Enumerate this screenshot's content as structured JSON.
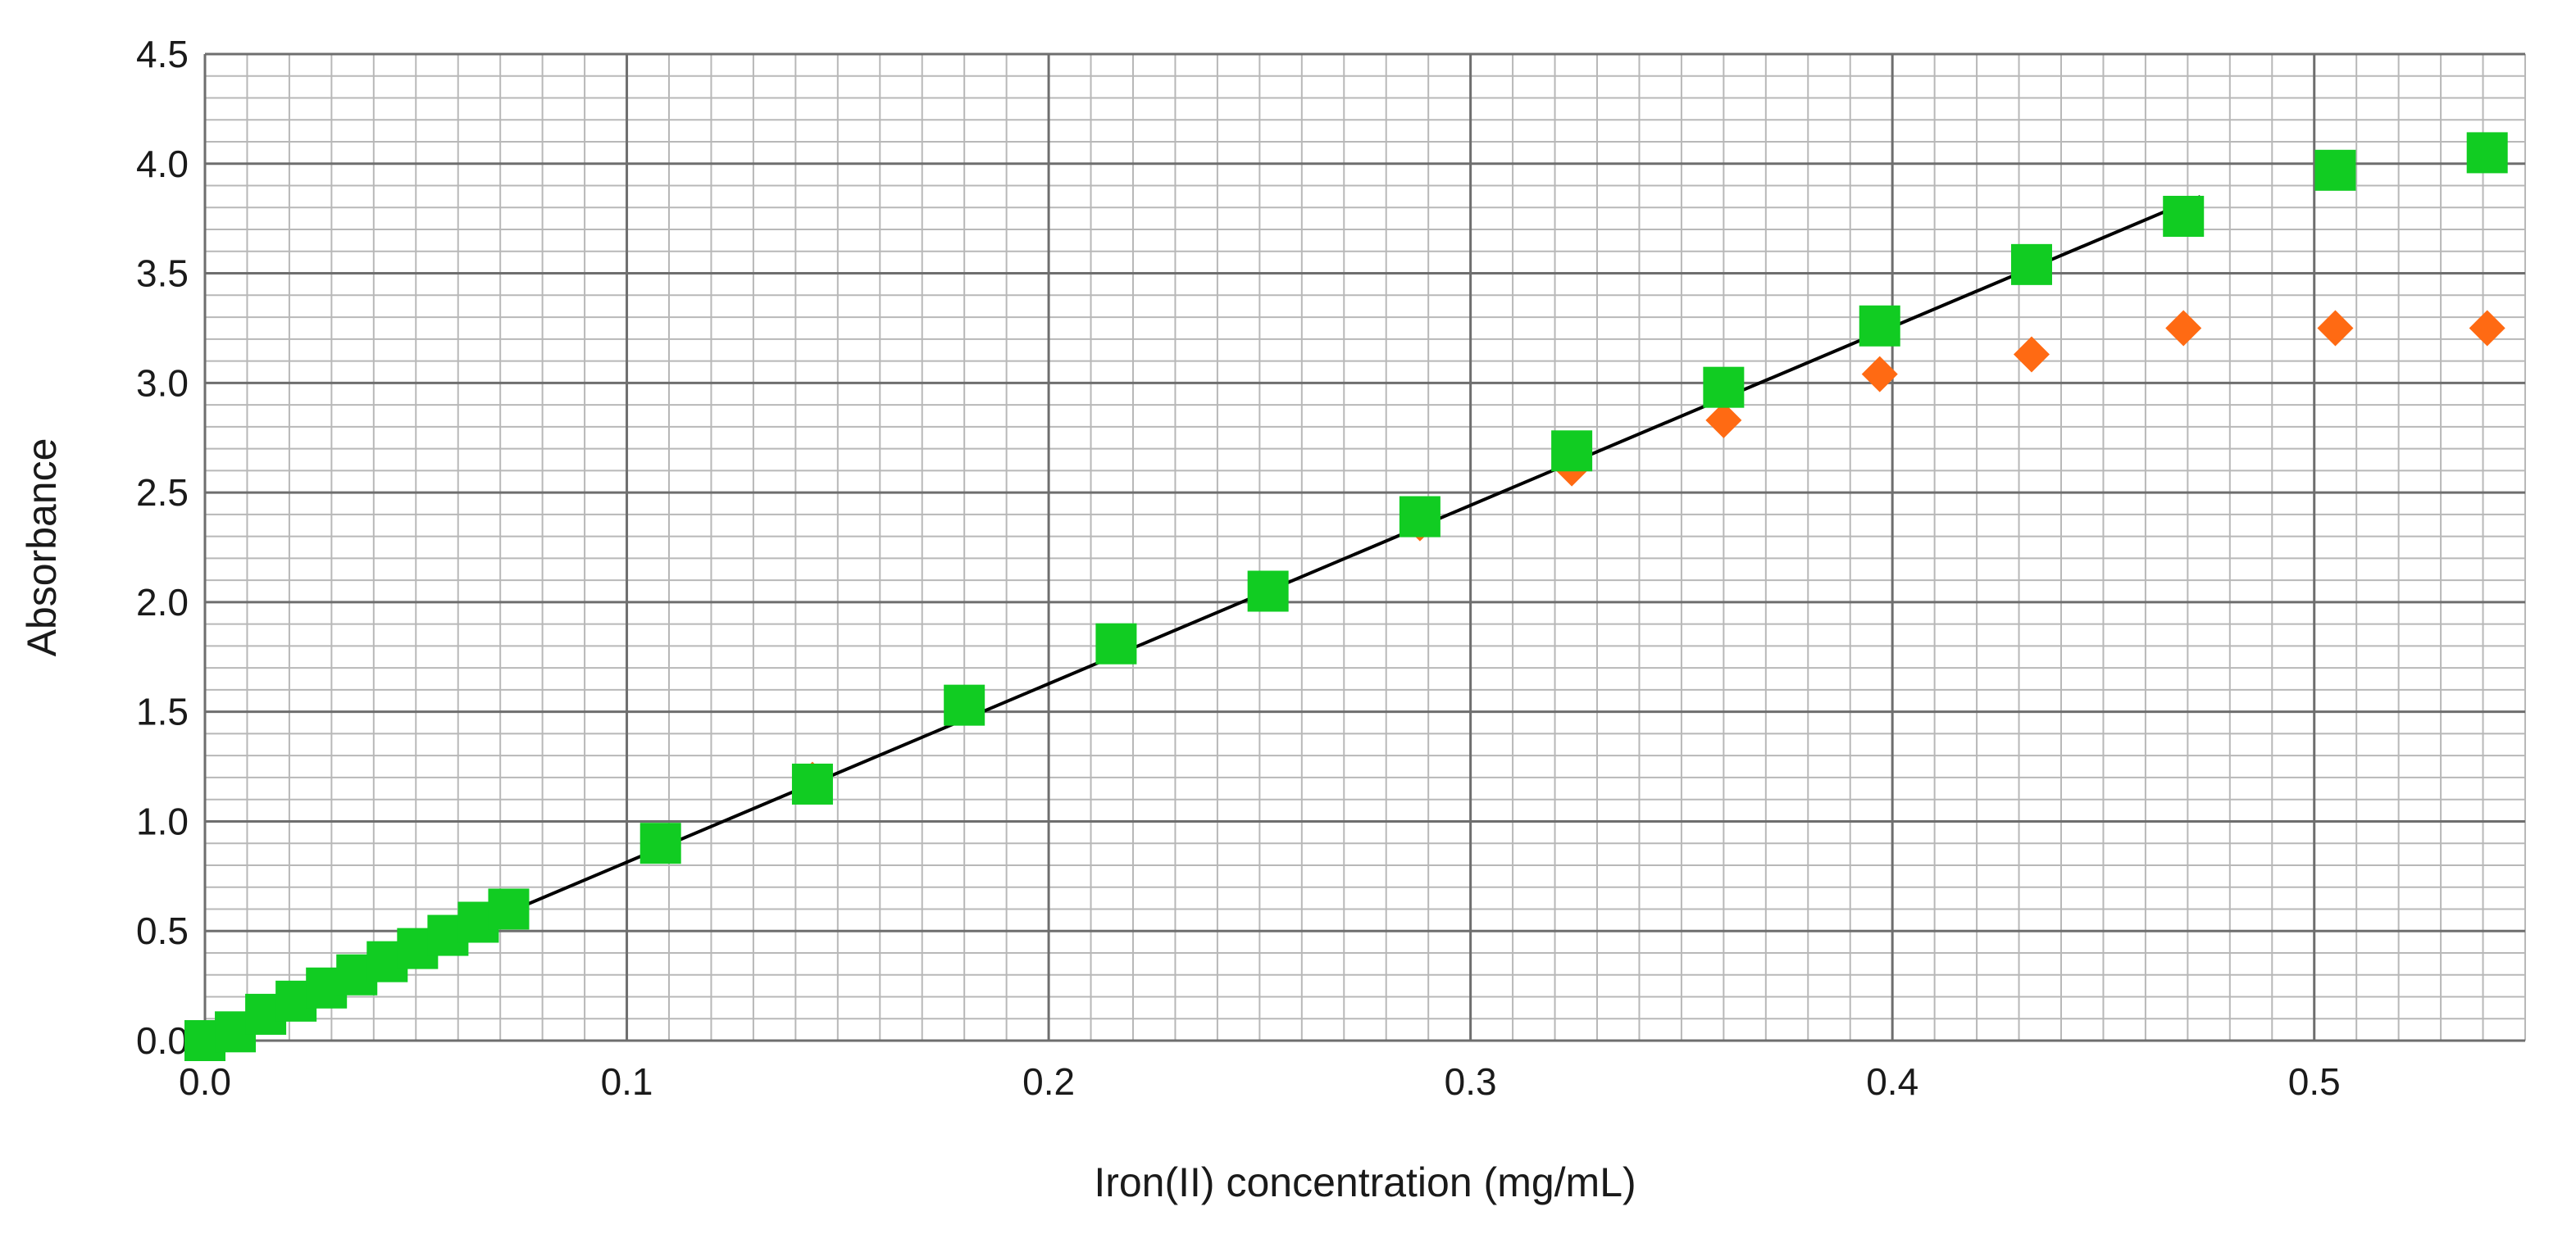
{
  "chart_data": {
    "type": "scatter",
    "title": "",
    "xlabel": "Iron(II) concentration (mg/mL)",
    "ylabel": "Absorbance",
    "xlim": [
      0,
      0.55
    ],
    "ylim": [
      0,
      4.5
    ],
    "x_ticks": [
      "0.0",
      "0.1",
      "0.2",
      "0.3",
      "0.4",
      "0.5"
    ],
    "y_ticks": [
      "0.0",
      "0.5",
      "1.0",
      "1.5",
      "2.0",
      "2.5",
      "3.0",
      "3.5",
      "4.0",
      "4.5"
    ],
    "grid": true,
    "legend": "none",
    "series": [
      {
        "marker": "diamond",
        "color": "#ff6a13",
        "points": [
          [
            0.0,
            0.0
          ],
          [
            0.0072,
            0.04
          ],
          [
            0.0144,
            0.12
          ],
          [
            0.0216,
            0.18
          ],
          [
            0.0288,
            0.24
          ],
          [
            0.036,
            0.3
          ],
          [
            0.0432,
            0.36
          ],
          [
            0.0504,
            0.42
          ],
          [
            0.0576,
            0.48
          ],
          [
            0.0648,
            0.54
          ],
          [
            0.072,
            0.6
          ],
          [
            0.108,
            0.9
          ],
          [
            0.144,
            1.19
          ],
          [
            0.18,
            1.52
          ],
          [
            0.216,
            1.81
          ],
          [
            0.252,
            2.05
          ],
          [
            0.288,
            2.36
          ],
          [
            0.324,
            2.61
          ],
          [
            0.36,
            2.83
          ],
          [
            0.397,
            3.04
          ],
          [
            0.433,
            3.13
          ],
          [
            0.469,
            3.25
          ],
          [
            0.505,
            3.25
          ],
          [
            0.541,
            3.25
          ]
        ]
      },
      {
        "marker": "square",
        "color": "#11cc22",
        "points": [
          [
            0.0,
            0.0
          ],
          [
            0.0072,
            0.04
          ],
          [
            0.0144,
            0.12
          ],
          [
            0.0216,
            0.18
          ],
          [
            0.0288,
            0.24
          ],
          [
            0.036,
            0.3
          ],
          [
            0.0432,
            0.36
          ],
          [
            0.0504,
            0.42
          ],
          [
            0.0576,
            0.48
          ],
          [
            0.0648,
            0.54
          ],
          [
            0.072,
            0.6
          ],
          [
            0.108,
            0.9
          ],
          [
            0.144,
            1.17
          ],
          [
            0.18,
            1.53
          ],
          [
            0.216,
            1.81
          ],
          [
            0.252,
            2.05
          ],
          [
            0.288,
            2.39
          ],
          [
            0.324,
            2.69
          ],
          [
            0.36,
            2.98
          ],
          [
            0.397,
            3.26
          ],
          [
            0.433,
            3.54
          ],
          [
            0.469,
            3.76
          ],
          [
            0.505,
            3.97
          ],
          [
            0.541,
            4.05
          ]
        ]
      }
    ],
    "trendline": {
      "color": "#000000",
      "from": [
        0.0,
        0.0
      ],
      "to": [
        0.473,
        3.85
      ]
    }
  }
}
